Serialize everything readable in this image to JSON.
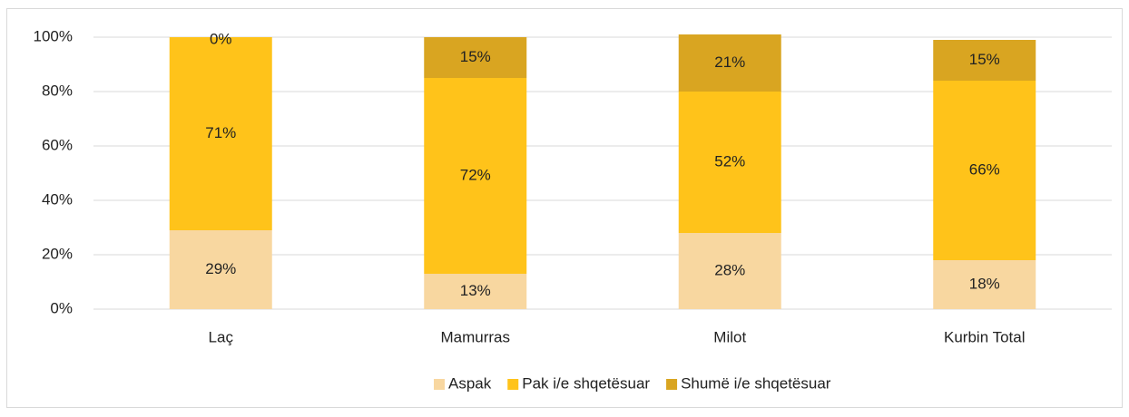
{
  "chart_data": {
    "type": "bar",
    "stacked": true,
    "categories": [
      "Laç",
      "Mamurras",
      "Milot",
      "Kurbin Total"
    ],
    "series": [
      {
        "name": "Aspak",
        "color": "#f8d7a0",
        "values": [
          29,
          13,
          28,
          18
        ],
        "value_labels": [
          "29%",
          "13%",
          "28%",
          "18%"
        ]
      },
      {
        "name": "Pak i/e shqetësuar",
        "color": "#ffc31a",
        "values": [
          71,
          72,
          52,
          66
        ],
        "value_labels": [
          "71%",
          "72%",
          "52%",
          "66%"
        ]
      },
      {
        "name": "Shumë i/e shqetësuar",
        "color": "#d9a521",
        "values": [
          0,
          15,
          21,
          15
        ],
        "value_labels": [
          "0%",
          "15%",
          "21%",
          "15%"
        ]
      }
    ],
    "ylim": [
      0,
      100
    ],
    "yticks": [
      {
        "value": 0,
        "label": "0%"
      },
      {
        "value": 20,
        "label": "20%"
      },
      {
        "value": 40,
        "label": "40%"
      },
      {
        "value": 60,
        "label": "60%"
      },
      {
        "value": 80,
        "label": "80%"
      },
      {
        "value": 100,
        "label": "100%"
      }
    ],
    "grid": true,
    "legend": "bottom"
  }
}
